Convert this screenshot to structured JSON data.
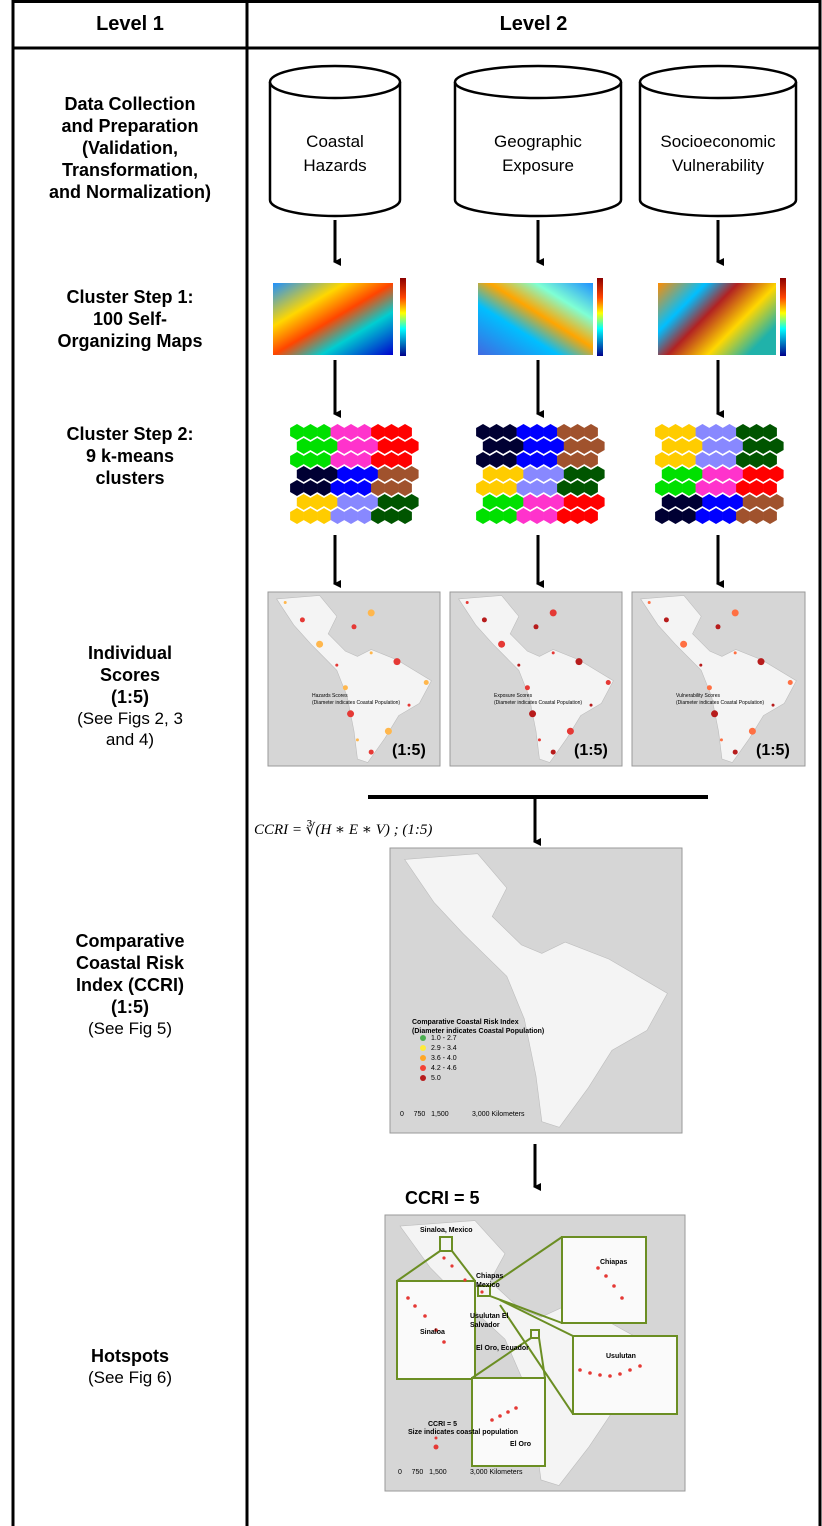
{
  "header": {
    "columns": [
      "Level 1",
      "Level 2"
    ]
  },
  "rows": [
    {
      "label": [
        "Data Collection",
        "and Preparation",
        "(Validation,",
        "Transformation,",
        "and Normalization)"
      ]
    },
    {
      "label": [
        "Cluster Step 1:",
        "100 Self-",
        "Organizing Maps"
      ]
    },
    {
      "label": [
        "Cluster Step 2:",
        "9 k-means",
        "clusters"
      ]
    },
    {
      "label": [
        "Individual",
        "Scores",
        "(1:5)"
      ],
      "note": [
        "(See Figs 2, 3",
        "and 4)"
      ]
    },
    {
      "label": [
        "Comparative",
        "Coastal Risk",
        "Index (CCRI)",
        "(1:5)"
      ],
      "note": [
        "(See Fig 5)"
      ]
    },
    {
      "label": [
        "Hotspots"
      ],
      "note": [
        "(See Fig 6)"
      ]
    }
  ],
  "databases": [
    [
      "Coastal",
      "Hazards"
    ],
    [
      "Geographic",
      "Exposure"
    ],
    [
      "Socioeconomic",
      "Vulnerability"
    ]
  ],
  "score_maps": [
    {
      "legend": [
        "Hazards Scores",
        "(Diameter indicates Coastal Population)"
      ],
      "badge": "(1:5)"
    },
    {
      "legend": [
        "Exposure Scores",
        "(Diameter indicates Coastal Population)"
      ],
      "badge": "(1:5)"
    },
    {
      "legend": [
        "Vulnerability Scores",
        "(Diameter indicates Coastal Population)"
      ],
      "badge": "(1:5)"
    }
  ],
  "formula": "CCRI = ∛(H ∗ E ∗ V) ; (1:5)",
  "ccri_map": {
    "legend_title": [
      "Comparative Coastal Risk Index",
      "(Diameter indicates Coastal Population)"
    ],
    "legend_items": [
      "1.0 - 2.7",
      "2.9 - 3.4",
      "3.6 - 4.0",
      "4.2 - 4.6",
      "5.0"
    ],
    "scale": "0     750   1,500            3,000 Kilometers"
  },
  "hotspot_title": "CCRI = 5",
  "hotspot_map": {
    "places": [
      "Sinaloa, Mexico",
      "Chiapas Mexico",
      "Usulutan El Salvador",
      "El Oro, Ecuador"
    ],
    "insets": [
      "Sinaloa",
      "Chiapas",
      "Usulutan",
      "El Oro"
    ],
    "legend": [
      "CCRI = 5",
      "Size indicates coastal population"
    ],
    "scale": "0     750   1,500            3,000 Kilometers"
  }
}
